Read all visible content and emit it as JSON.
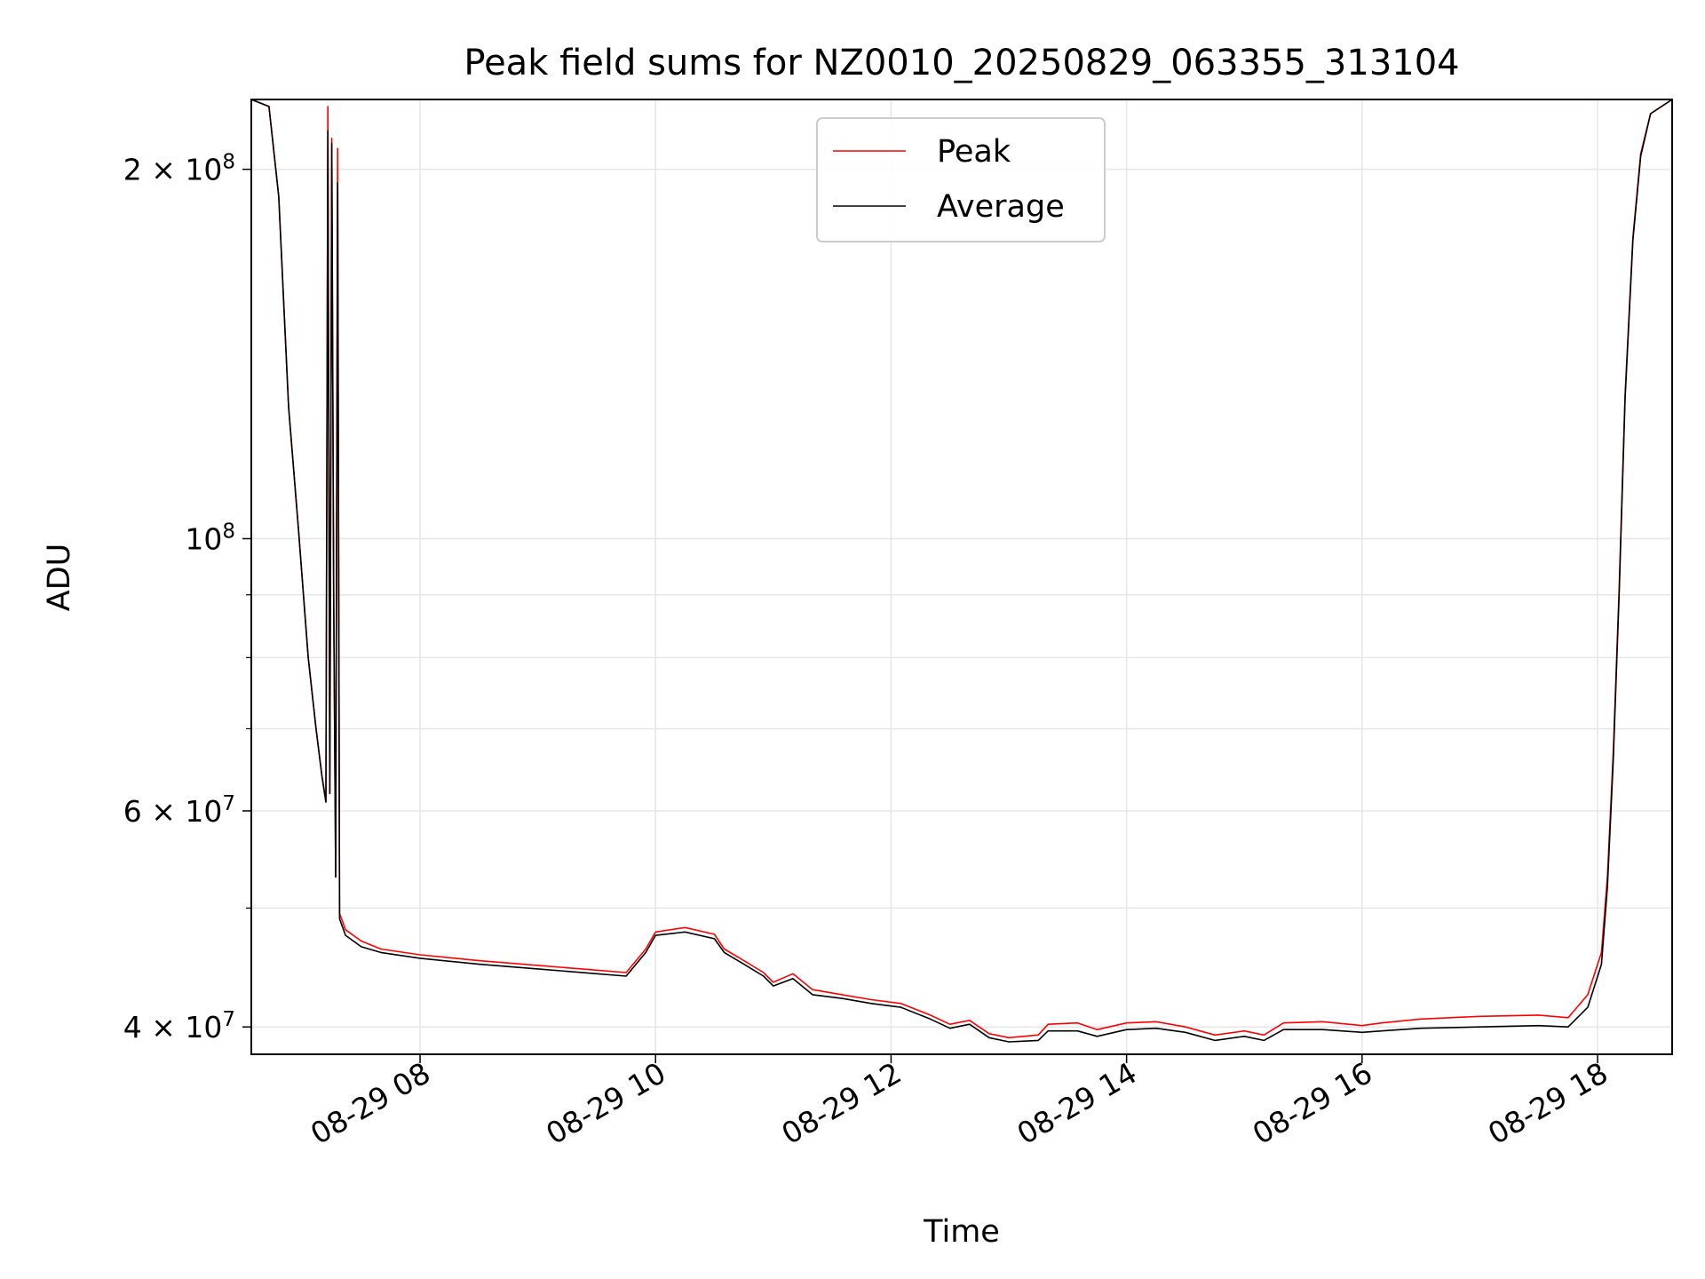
{
  "chart_data": {
    "type": "line",
    "title": "Peak field sums for NZ0010_20250829_063355_313104",
    "xlabel": "Time",
    "ylabel": "ADU",
    "yscale": "log",
    "grid": true,
    "legend": {
      "placement": "top-center",
      "entries": [
        "Peak",
        "Average"
      ]
    },
    "x_range": [
      "2025-08-29 06:34",
      "2025-08-29 18:38"
    ],
    "ylim": [
      38000000,
      228000000
    ],
    "x_ticks": [
      {
        "time": "2025-08-29 08:00",
        "label": "08-29 08"
      },
      {
        "time": "2025-08-29 10:00",
        "label": "08-29 10"
      },
      {
        "time": "2025-08-29 12:00",
        "label": "08-29 12"
      },
      {
        "time": "2025-08-29 14:00",
        "label": "08-29 14"
      },
      {
        "time": "2025-08-29 16:00",
        "label": "08-29 16"
      },
      {
        "time": "2025-08-29 18:00",
        "label": "08-29 18"
      }
    ],
    "y_ticks": [
      {
        "value": 40000000,
        "base": "4",
        "exp": "7"
      },
      {
        "value": 60000000,
        "base": "6",
        "exp": "7"
      },
      {
        "value": 100000000,
        "base": "",
        "exp": "8"
      },
      {
        "value": 200000000,
        "base": "2",
        "exp": "8"
      }
    ],
    "y_minor_ticks": [
      50000000,
      70000000,
      80000000,
      90000000
    ],
    "series": [
      {
        "name": "Average",
        "color": "#000000",
        "points": [
          [
            "2025-08-29 06:34",
            228000000
          ],
          [
            "2025-08-29 06:43",
            225000000
          ],
          [
            "2025-08-29 06:48",
            190000000
          ],
          [
            "2025-08-29 06:53",
            128000000
          ],
          [
            "2025-08-29 06:58",
            102000000
          ],
          [
            "2025-08-29 07:03",
            80000000
          ],
          [
            "2025-08-29 07:07",
            70000000
          ],
          [
            "2025-08-29 07:10",
            64000000
          ],
          [
            "2025-08-29 07:12",
            61000000
          ],
          [
            "2025-08-29 07:13",
            215000000
          ],
          [
            "2025-08-29 07:14",
            62000000
          ],
          [
            "2025-08-29 07:15",
            210000000
          ],
          [
            "2025-08-29 07:16",
            88000000
          ],
          [
            "2025-08-29 07:17",
            53000000
          ],
          [
            "2025-08-29 07:18",
            195000000
          ],
          [
            "2025-08-29 07:19",
            49000000
          ],
          [
            "2025-08-29 07:22",
            47500000
          ],
          [
            "2025-08-29 07:30",
            46500000
          ],
          [
            "2025-08-29 07:40",
            46000000
          ],
          [
            "2025-08-29 08:00",
            45500000
          ],
          [
            "2025-08-29 08:30",
            45000000
          ],
          [
            "2025-08-29 09:00",
            44600000
          ],
          [
            "2025-08-29 09:30",
            44200000
          ],
          [
            "2025-08-29 09:45",
            44000000
          ],
          [
            "2025-08-29 09:55",
            46000000
          ],
          [
            "2025-08-29 10:00",
            47500000
          ],
          [
            "2025-08-29 10:15",
            47800000
          ],
          [
            "2025-08-29 10:30",
            47200000
          ],
          [
            "2025-08-29 10:35",
            46000000
          ],
          [
            "2025-08-29 10:45",
            45000000
          ],
          [
            "2025-08-29 10:55",
            44000000
          ],
          [
            "2025-08-29 11:00",
            43200000
          ],
          [
            "2025-08-29 11:10",
            43800000
          ],
          [
            "2025-08-29 11:20",
            42500000
          ],
          [
            "2025-08-29 11:35",
            42200000
          ],
          [
            "2025-08-29 11:50",
            41800000
          ],
          [
            "2025-08-29 12:05",
            41500000
          ],
          [
            "2025-08-29 12:20",
            40600000
          ],
          [
            "2025-08-29 12:30",
            39900000
          ],
          [
            "2025-08-29 12:40",
            40200000
          ],
          [
            "2025-08-29 12:50",
            39200000
          ],
          [
            "2025-08-29 13:00",
            38900000
          ],
          [
            "2025-08-29 13:15",
            39000000
          ],
          [
            "2025-08-29 13:20",
            39700000
          ],
          [
            "2025-08-29 13:35",
            39700000
          ],
          [
            "2025-08-29 13:45",
            39300000
          ],
          [
            "2025-08-29 14:00",
            39800000
          ],
          [
            "2025-08-29 14:15",
            39900000
          ],
          [
            "2025-08-29 14:30",
            39600000
          ],
          [
            "2025-08-29 14:45",
            39000000
          ],
          [
            "2025-08-29 15:00",
            39300000
          ],
          [
            "2025-08-29 15:10",
            39000000
          ],
          [
            "2025-08-29 15:20",
            39800000
          ],
          [
            "2025-08-29 15:40",
            39800000
          ],
          [
            "2025-08-29 16:00",
            39600000
          ],
          [
            "2025-08-29 16:10",
            39700000
          ],
          [
            "2025-08-29 16:30",
            39900000
          ],
          [
            "2025-08-29 17:00",
            40000000
          ],
          [
            "2025-08-29 17:30",
            40100000
          ],
          [
            "2025-08-29 17:45",
            40000000
          ],
          [
            "2025-08-29 17:55",
            41500000
          ],
          [
            "2025-08-29 18:02",
            45000000
          ],
          [
            "2025-08-29 18:05",
            52000000
          ],
          [
            "2025-08-29 18:08",
            66000000
          ],
          [
            "2025-08-29 18:11",
            90000000
          ],
          [
            "2025-08-29 18:14",
            130000000
          ],
          [
            "2025-08-29 18:18",
            175000000
          ],
          [
            "2025-08-29 18:22",
            205000000
          ],
          [
            "2025-08-29 18:27",
            222000000
          ],
          [
            "2025-08-29 18:38",
            228000000
          ]
        ]
      },
      {
        "name": "Peak",
        "color": "#ff0000",
        "points": [
          [
            "2025-08-29 06:34",
            228000000
          ],
          [
            "2025-08-29 06:43",
            225000000
          ],
          [
            "2025-08-29 06:48",
            190000000
          ],
          [
            "2025-08-29 06:53",
            128000000
          ],
          [
            "2025-08-29 06:58",
            102000000
          ],
          [
            "2025-08-29 07:03",
            80000000
          ],
          [
            "2025-08-29 07:07",
            70000000
          ],
          [
            "2025-08-29 07:10",
            64000000
          ],
          [
            "2025-08-29 07:12",
            61000000
          ],
          [
            "2025-08-29 07:13",
            225000000
          ],
          [
            "2025-08-29 07:14",
            62000000
          ],
          [
            "2025-08-29 07:15",
            212000000
          ],
          [
            "2025-08-29 07:16",
            90000000
          ],
          [
            "2025-08-29 07:17",
            53000000
          ],
          [
            "2025-08-29 07:18",
            208000000
          ],
          [
            "2025-08-29 07:19",
            49500000
          ],
          [
            "2025-08-29 07:22",
            48000000
          ],
          [
            "2025-08-29 07:30",
            47000000
          ],
          [
            "2025-08-29 07:40",
            46300000
          ],
          [
            "2025-08-29 08:00",
            45800000
          ],
          [
            "2025-08-29 08:30",
            45300000
          ],
          [
            "2025-08-29 09:00",
            44900000
          ],
          [
            "2025-08-29 09:30",
            44500000
          ],
          [
            "2025-08-29 09:45",
            44300000
          ],
          [
            "2025-08-29 09:55",
            46300000
          ],
          [
            "2025-08-29 10:00",
            47800000
          ],
          [
            "2025-08-29 10:15",
            48200000
          ],
          [
            "2025-08-29 10:30",
            47600000
          ],
          [
            "2025-08-29 10:35",
            46300000
          ],
          [
            "2025-08-29 10:45",
            45300000
          ],
          [
            "2025-08-29 10:55",
            44300000
          ],
          [
            "2025-08-29 11:00",
            43500000
          ],
          [
            "2025-08-29 11:10",
            44200000
          ],
          [
            "2025-08-29 11:20",
            42900000
          ],
          [
            "2025-08-29 11:35",
            42500000
          ],
          [
            "2025-08-29 11:50",
            42100000
          ],
          [
            "2025-08-29 12:05",
            41800000
          ],
          [
            "2025-08-29 12:20",
            40900000
          ],
          [
            "2025-08-29 12:30",
            40200000
          ],
          [
            "2025-08-29 12:40",
            40500000
          ],
          [
            "2025-08-29 12:50",
            39500000
          ],
          [
            "2025-08-29 13:00",
            39200000
          ],
          [
            "2025-08-29 13:15",
            39400000
          ],
          [
            "2025-08-29 13:20",
            40200000
          ],
          [
            "2025-08-29 13:35",
            40300000
          ],
          [
            "2025-08-29 13:45",
            39800000
          ],
          [
            "2025-08-29 14:00",
            40300000
          ],
          [
            "2025-08-29 14:15",
            40400000
          ],
          [
            "2025-08-29 14:30",
            40000000
          ],
          [
            "2025-08-29 14:45",
            39400000
          ],
          [
            "2025-08-29 15:00",
            39700000
          ],
          [
            "2025-08-29 15:10",
            39400000
          ],
          [
            "2025-08-29 15:20",
            40300000
          ],
          [
            "2025-08-29 15:40",
            40400000
          ],
          [
            "2025-08-29 16:00",
            40100000
          ],
          [
            "2025-08-29 16:10",
            40300000
          ],
          [
            "2025-08-29 16:30",
            40600000
          ],
          [
            "2025-08-29 17:00",
            40800000
          ],
          [
            "2025-08-29 17:30",
            40900000
          ],
          [
            "2025-08-29 17:45",
            40700000
          ],
          [
            "2025-08-29 17:55",
            42500000
          ],
          [
            "2025-08-29 18:02",
            46000000
          ],
          [
            "2025-08-29 18:05",
            53000000
          ],
          [
            "2025-08-29 18:08",
            67000000
          ],
          [
            "2025-08-29 18:11",
            91000000
          ],
          [
            "2025-08-29 18:14",
            131000000
          ],
          [
            "2025-08-29 18:18",
            176000000
          ],
          [
            "2025-08-29 18:22",
            206000000
          ],
          [
            "2025-08-29 18:27",
            222000000
          ],
          [
            "2025-08-29 18:38",
            228000000
          ]
        ]
      }
    ]
  }
}
